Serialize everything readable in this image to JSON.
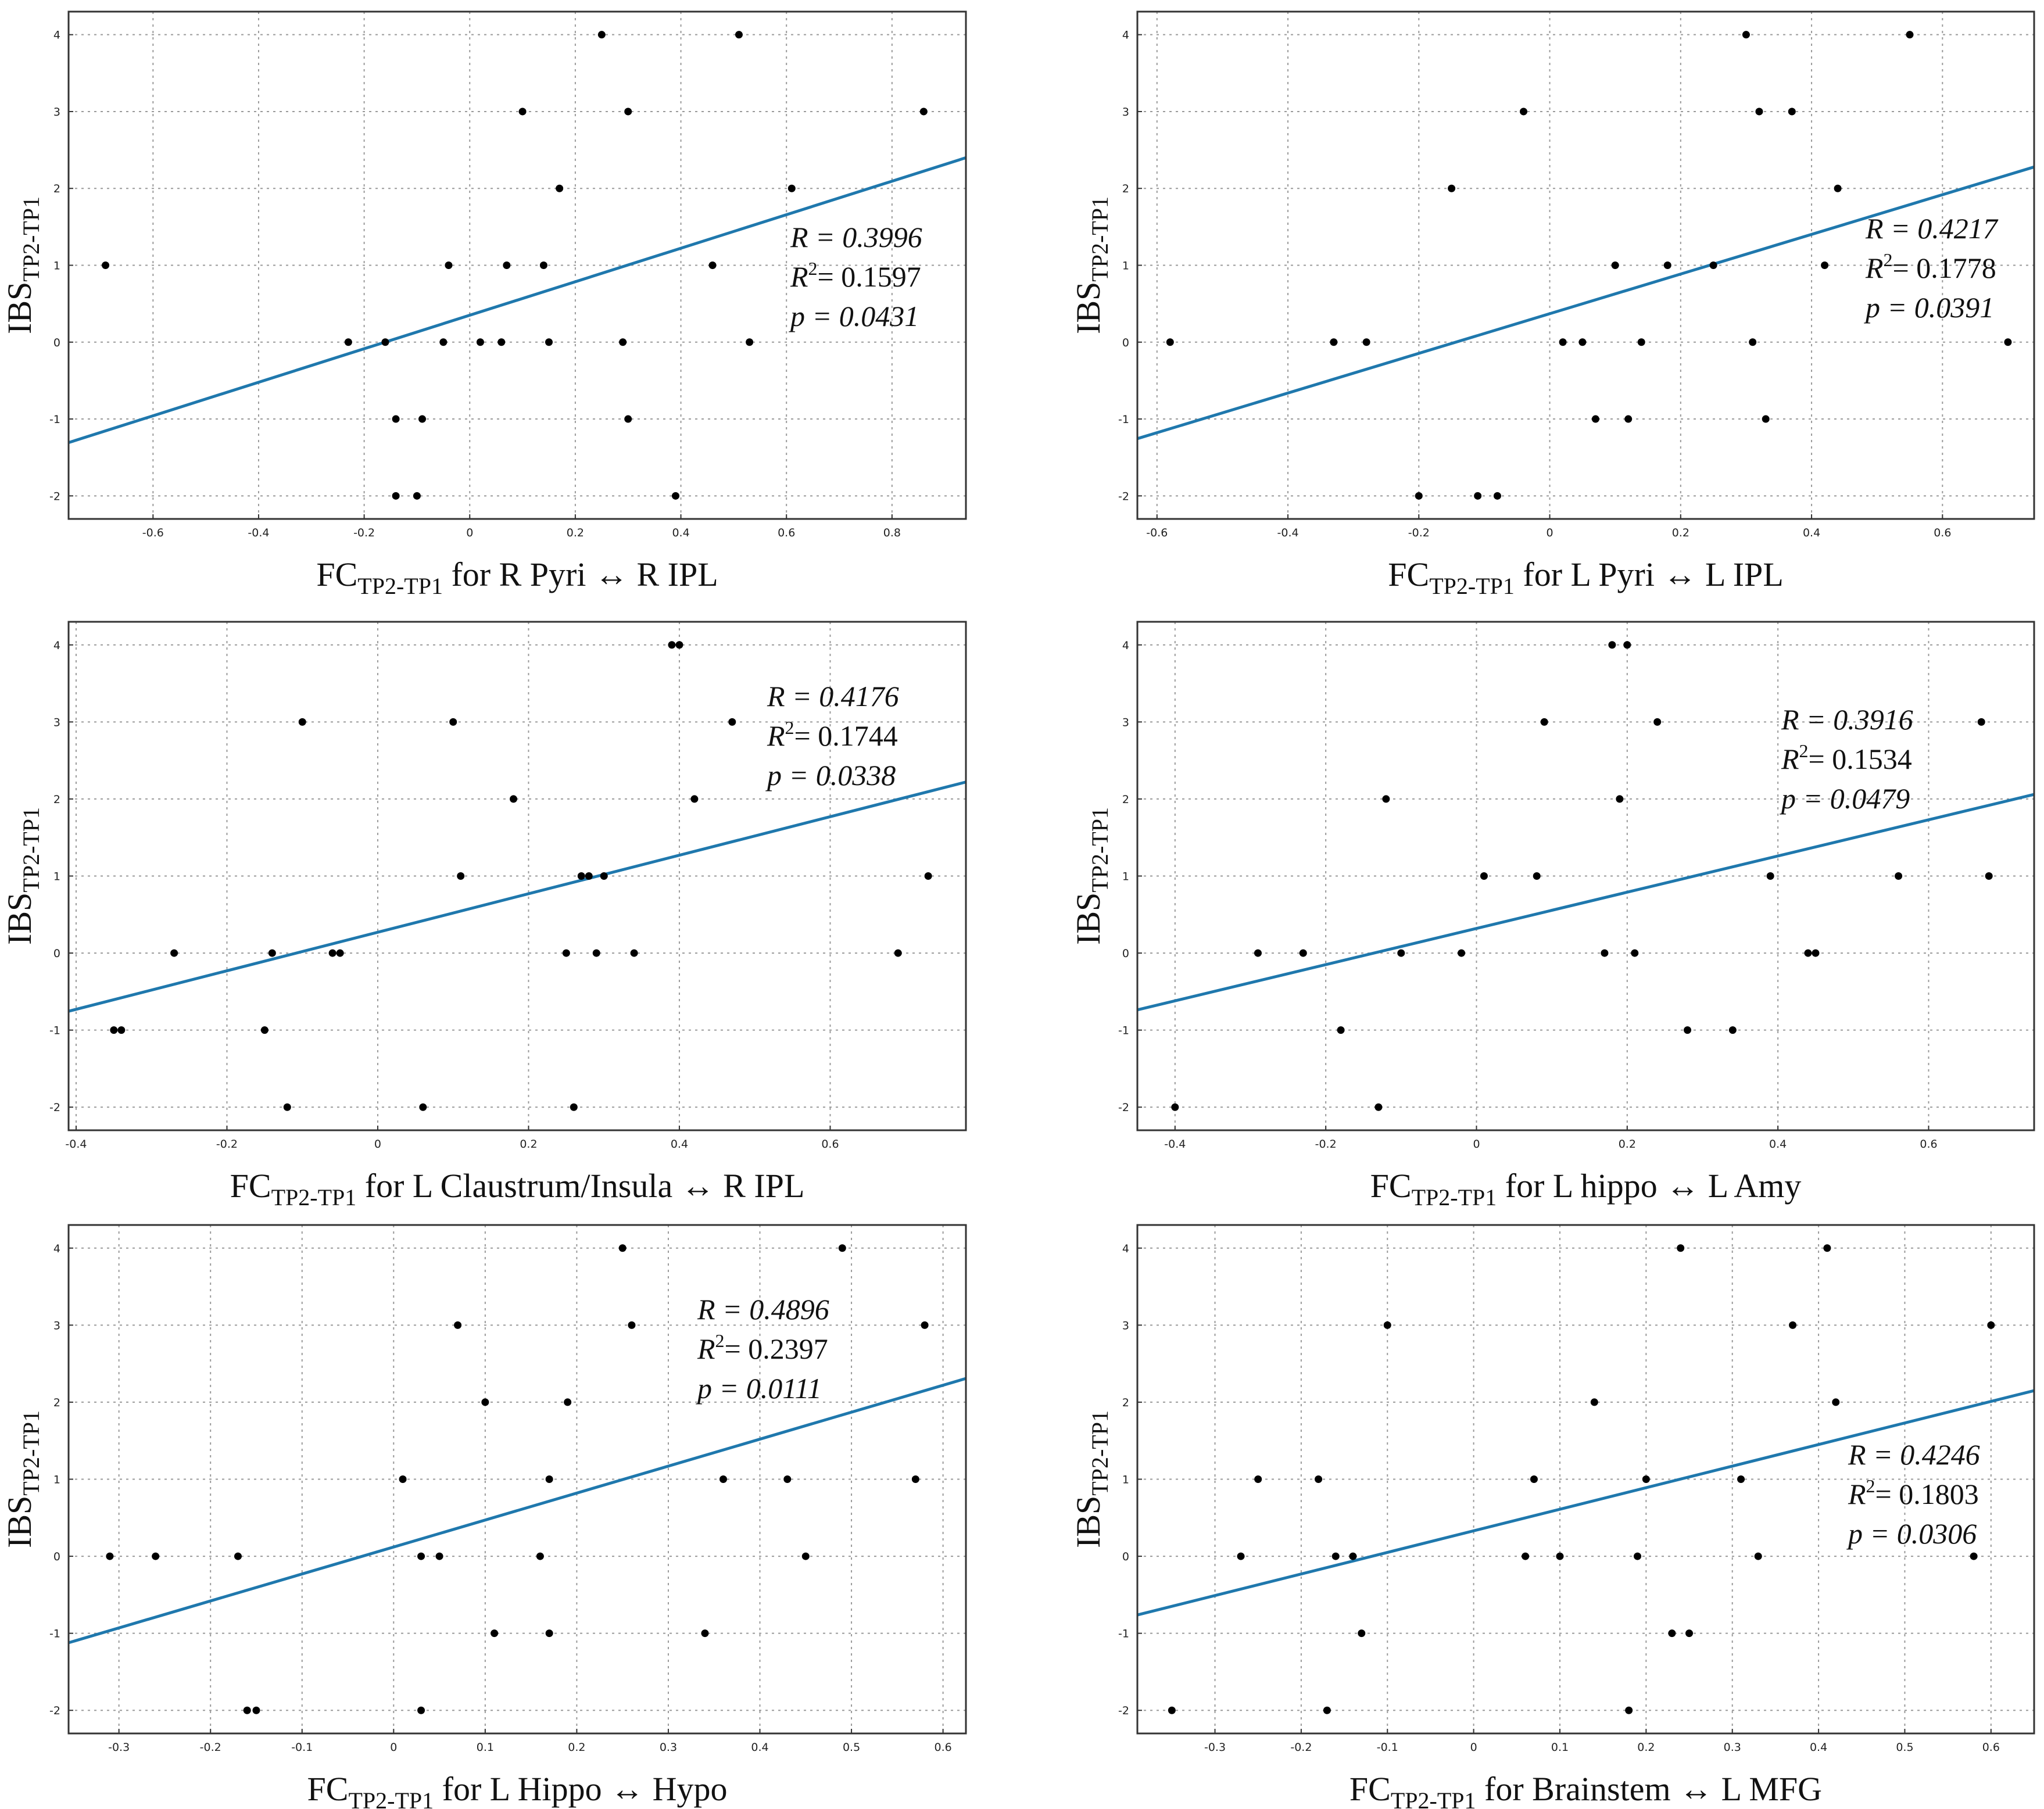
{
  "figure_type": "scatter-with-regression-grid",
  "colors": {
    "fit_line": "#1f78ad",
    "point": "#000000",
    "grid": "#9a9a9a",
    "frame": "#333333"
  },
  "chart_data": [
    {
      "type": "scatter",
      "ylabel": {
        "main": "IBS",
        "sub": "TP2-TP1"
      },
      "xlabel": {
        "main": "FC",
        "sub": "TP2-TP1",
        "rest": " for R Pyri ↔ R IPL"
      },
      "xlim": [
        -0.76,
        0.94
      ],
      "ylim": [
        -2.3,
        4.3
      ],
      "xticks": [
        -0.6,
        -0.4,
        -0.2,
        0,
        0.2,
        0.4,
        0.6,
        0.8
      ],
      "yticks": [
        -2,
        -1,
        0,
        1,
        2,
        3,
        4
      ],
      "xtick_labels": [
        "-0.6",
        "-0.4",
        "-0.2",
        "0",
        "0.2",
        "0.4",
        "0.6",
        "0.8"
      ],
      "ytick_labels": [
        "-2",
        "-1",
        "0",
        "1",
        "2",
        "3",
        "4"
      ],
      "stats": {
        "R_label": "R = 0.3996",
        "R2_prefix": "= 0.1597",
        "p_label": "p = 0.0431"
      },
      "fit": {
        "slope": 2.18,
        "intercept": 0.35
      },
      "points": [
        [
          -0.69,
          1
        ],
        [
          -0.23,
          0
        ],
        [
          -0.16,
          0
        ],
        [
          -0.14,
          -1
        ],
        [
          -0.14,
          -2
        ],
        [
          -0.1,
          -2
        ],
        [
          -0.09,
          -1
        ],
        [
          -0.05,
          0
        ],
        [
          -0.04,
          1
        ],
        [
          0.02,
          0
        ],
        [
          0.06,
          0
        ],
        [
          0.07,
          1
        ],
        [
          0.1,
          3
        ],
        [
          0.14,
          1
        ],
        [
          0.15,
          0
        ],
        [
          0.17,
          2
        ],
        [
          0.25,
          4
        ],
        [
          0.29,
          0
        ],
        [
          0.3,
          3
        ],
        [
          0.3,
          -1
        ],
        [
          0.39,
          -2
        ],
        [
          0.46,
          1
        ],
        [
          0.51,
          4
        ],
        [
          0.53,
          0
        ],
        [
          0.61,
          2
        ],
        [
          0.86,
          3
        ]
      ]
    },
    {
      "type": "scatter",
      "ylabel": {
        "main": "IBS",
        "sub": "TP2-TP1"
      },
      "xlabel": {
        "main": "FC",
        "sub": "TP2-TP1",
        "rest": " for L Pyri ↔ L IPL"
      },
      "xlim": [
        -0.63,
        0.74
      ],
      "ylim": [
        -2.3,
        4.3
      ],
      "xticks": [
        -0.6,
        -0.4,
        -0.2,
        0,
        0.2,
        0.4,
        0.6
      ],
      "yticks": [
        -2,
        -1,
        0,
        1,
        2,
        3,
        4
      ],
      "xtick_labels": [
        "-0.6",
        "-0.4",
        "-0.2",
        "0",
        "0.2",
        "0.4",
        "0.6"
      ],
      "ytick_labels": [
        "-2",
        "-1",
        "0",
        "1",
        "2",
        "3",
        "4"
      ],
      "stats": {
        "R_label": "R = 0.4217",
        "R2_prefix": "= 0.1778",
        "p_label": "p = 0.0391"
      },
      "fit": {
        "slope": 2.58,
        "intercept": 0.37
      },
      "points": [
        [
          -0.58,
          0
        ],
        [
          -0.33,
          0
        ],
        [
          -0.28,
          0
        ],
        [
          -0.2,
          -2
        ],
        [
          -0.15,
          2
        ],
        [
          -0.11,
          -2
        ],
        [
          -0.08,
          -2
        ],
        [
          -0.04,
          3
        ],
        [
          0.02,
          0
        ],
        [
          0.05,
          0
        ],
        [
          0.07,
          -1
        ],
        [
          0.1,
          1
        ],
        [
          0.12,
          -1
        ],
        [
          0.14,
          0
        ],
        [
          0.18,
          1
        ],
        [
          0.25,
          1
        ],
        [
          0.3,
          4
        ],
        [
          0.31,
          0
        ],
        [
          0.32,
          3
        ],
        [
          0.33,
          -1
        ],
        [
          0.37,
          3
        ],
        [
          0.42,
          1
        ],
        [
          0.44,
          2
        ],
        [
          0.55,
          4
        ],
        [
          0.7,
          0
        ]
      ]
    },
    {
      "type": "scatter",
      "ylabel": {
        "main": "IBS",
        "sub": "TP2-TP1"
      },
      "xlabel": {
        "main": "FC",
        "sub": "TP2-TP1",
        "rest": " for L Claustrum/Insula ↔ R IPL"
      },
      "xlim": [
        -0.41,
        0.78
      ],
      "ylim": [
        -2.3,
        4.3
      ],
      "xticks": [
        -0.4,
        -0.2,
        0,
        0.2,
        0.4,
        0.6
      ],
      "yticks": [
        -2,
        -1,
        0,
        1,
        2,
        3,
        4
      ],
      "xtick_labels": [
        "-0.4",
        "-0.2",
        "0",
        "0.2",
        "0.4",
        "0.6"
      ],
      "ytick_labels": [
        "-2",
        "-1",
        "0",
        "1",
        "2",
        "3",
        "4"
      ],
      "stats": {
        "R_label": "R = 0.4176",
        "R2_prefix": "= 0.1744",
        "p_label": "p = 0.0338"
      },
      "fit": {
        "slope": 2.5,
        "intercept": 0.27
      },
      "points": [
        [
          -0.35,
          -1
        ],
        [
          -0.34,
          -1
        ],
        [
          -0.27,
          0
        ],
        [
          -0.15,
          -1
        ],
        [
          -0.14,
          0
        ],
        [
          -0.12,
          -2
        ],
        [
          -0.1,
          3
        ],
        [
          -0.06,
          0
        ],
        [
          -0.05,
          0
        ],
        [
          0.06,
          -2
        ],
        [
          0.1,
          3
        ],
        [
          0.11,
          1
        ],
        [
          0.18,
          2
        ],
        [
          0.25,
          0
        ],
        [
          0.26,
          -2
        ],
        [
          0.27,
          1
        ],
        [
          0.28,
          1
        ],
        [
          0.29,
          0
        ],
        [
          0.3,
          1
        ],
        [
          0.34,
          0
        ],
        [
          0.39,
          4
        ],
        [
          0.4,
          4
        ],
        [
          0.42,
          2
        ],
        [
          0.47,
          3
        ],
        [
          0.69,
          0
        ],
        [
          0.73,
          1
        ]
      ]
    },
    {
      "type": "scatter",
      "ylabel": {
        "main": "IBS",
        "sub": "TP2-TP1"
      },
      "xlabel": {
        "main": "FC",
        "sub": "TP2-TP1",
        "rest": " for L hippo ↔ L Amy"
      },
      "xlim": [
        -0.45,
        0.74
      ],
      "ylim": [
        -2.3,
        4.3
      ],
      "xticks": [
        -0.4,
        -0.2,
        0,
        0.2,
        0.4,
        0.6
      ],
      "yticks": [
        -2,
        -1,
        0,
        1,
        2,
        3,
        4
      ],
      "xtick_labels": [
        "-0.4",
        "-0.2",
        "0",
        "0.2",
        "0.4",
        "0.6"
      ],
      "ytick_labels": [
        "-2",
        "-1",
        "0",
        "1",
        "2",
        "3",
        "4"
      ],
      "stats": {
        "R_label": "R = 0.3916",
        "R2_prefix": "= 0.1534",
        "p_label": "p = 0.0479"
      },
      "fit": {
        "slope": 2.35,
        "intercept": 0.32
      },
      "points": [
        [
          -0.4,
          -2
        ],
        [
          -0.29,
          0
        ],
        [
          -0.23,
          0
        ],
        [
          -0.18,
          -1
        ],
        [
          -0.13,
          -2
        ],
        [
          -0.12,
          2
        ],
        [
          -0.1,
          0
        ],
        [
          -0.02,
          0
        ],
        [
          0.01,
          1
        ],
        [
          0.08,
          1
        ],
        [
          0.09,
          3
        ],
        [
          0.17,
          0
        ],
        [
          0.18,
          4
        ],
        [
          0.19,
          2
        ],
        [
          0.2,
          4
        ],
        [
          0.21,
          0
        ],
        [
          0.24,
          3
        ],
        [
          0.28,
          -1
        ],
        [
          0.34,
          -1
        ],
        [
          0.39,
          1
        ],
        [
          0.44,
          0
        ],
        [
          0.45,
          0
        ],
        [
          0.56,
          1
        ],
        [
          0.67,
          3
        ],
        [
          0.68,
          1
        ]
      ]
    },
    {
      "type": "scatter",
      "ylabel": {
        "main": "IBS",
        "sub": "TP2-TP1"
      },
      "xlabel": {
        "main": "FC",
        "sub": "TP2-TP1",
        "rest": " for L Hippo ↔ Hypo"
      },
      "xlim": [
        -0.355,
        0.625
      ],
      "ylim": [
        -2.3,
        4.3
      ],
      "xticks": [
        -0.3,
        -0.2,
        -0.1,
        0,
        0.1,
        0.2,
        0.3,
        0.4,
        0.5,
        0.6
      ],
      "yticks": [
        -2,
        -1,
        0,
        1,
        2,
        3,
        4
      ],
      "xtick_labels": [
        "-0.3",
        "-0.2",
        "-0.1",
        "0",
        "0.1",
        "0.2",
        "0.3",
        "0.4",
        "0.5",
        "0.6"
      ],
      "ytick_labels": [
        "-2",
        "-1",
        "0",
        "1",
        "2",
        "3",
        "4"
      ],
      "stats": {
        "R_label": "R = 0.4896",
        "R2_prefix": "= 0.2397",
        "p_label": "p = 0.0111"
      },
      "fit": {
        "slope": 3.5,
        "intercept": 0.12
      },
      "points": [
        [
          -0.31,
          0
        ],
        [
          -0.26,
          0
        ],
        [
          -0.17,
          0
        ],
        [
          -0.16,
          -2
        ],
        [
          -0.15,
          -2
        ],
        [
          0.01,
          1
        ],
        [
          0.03,
          -2
        ],
        [
          0.03,
          0
        ],
        [
          0.05,
          0
        ],
        [
          0.07,
          3
        ],
        [
          0.1,
          2
        ],
        [
          0.11,
          -1
        ],
        [
          0.16,
          0
        ],
        [
          0.17,
          -1
        ],
        [
          0.17,
          1
        ],
        [
          0.19,
          2
        ],
        [
          0.25,
          4
        ],
        [
          0.26,
          3
        ],
        [
          0.34,
          -1
        ],
        [
          0.36,
          1
        ],
        [
          0.43,
          1
        ],
        [
          0.45,
          0
        ],
        [
          0.49,
          4
        ],
        [
          0.57,
          1
        ],
        [
          0.58,
          3
        ]
      ]
    },
    {
      "type": "scatter",
      "ylabel": {
        "main": "IBS",
        "sub": "TP2-TP1"
      },
      "xlabel": {
        "main": "FC",
        "sub": "TP2-TP1",
        "rest": " for Brainstem ↔ L MFG"
      },
      "xlim": [
        -0.39,
        0.65
      ],
      "ylim": [
        -2.3,
        4.3
      ],
      "xticks": [
        -0.3,
        -0.2,
        -0.1,
        0,
        0.1,
        0.2,
        0.3,
        0.4,
        0.5,
        0.6
      ],
      "yticks": [
        -2,
        -1,
        0,
        1,
        2,
        3,
        4
      ],
      "xtick_labels": [
        "-0.3",
        "-0.2",
        "-0.1",
        "0",
        "0.1",
        "0.2",
        "0.3",
        "0.4",
        "0.5",
        "0.6"
      ],
      "ytick_labels": [
        "-2",
        "-1",
        "0",
        "1",
        "2",
        "3",
        "4"
      ],
      "stats": {
        "R_label": "R = 0.4246",
        "R2_prefix": "= 0.1803",
        "p_label": "p = 0.0306"
      },
      "fit": {
        "slope": 2.8,
        "intercept": 0.33
      },
      "points": [
        [
          -0.35,
          -2
        ],
        [
          -0.27,
          0
        ],
        [
          -0.25,
          1
        ],
        [
          -0.17,
          -2
        ],
        [
          -0.18,
          1
        ],
        [
          -0.16,
          0
        ],
        [
          -0.14,
          0
        ],
        [
          -0.13,
          -1
        ],
        [
          -0.1,
          3
        ],
        [
          0.06,
          0
        ],
        [
          0.07,
          1
        ],
        [
          0.1,
          0
        ],
        [
          0.14,
          2
        ],
        [
          0.18,
          -2
        ],
        [
          0.19,
          0
        ],
        [
          0.2,
          1
        ],
        [
          0.23,
          -1
        ],
        [
          0.24,
          4
        ],
        [
          0.25,
          -1
        ],
        [
          0.31,
          1
        ],
        [
          0.33,
          0
        ],
        [
          0.37,
          3
        ],
        [
          0.41,
          4
        ],
        [
          0.42,
          2
        ],
        [
          0.58,
          0
        ],
        [
          0.6,
          3
        ]
      ]
    }
  ]
}
